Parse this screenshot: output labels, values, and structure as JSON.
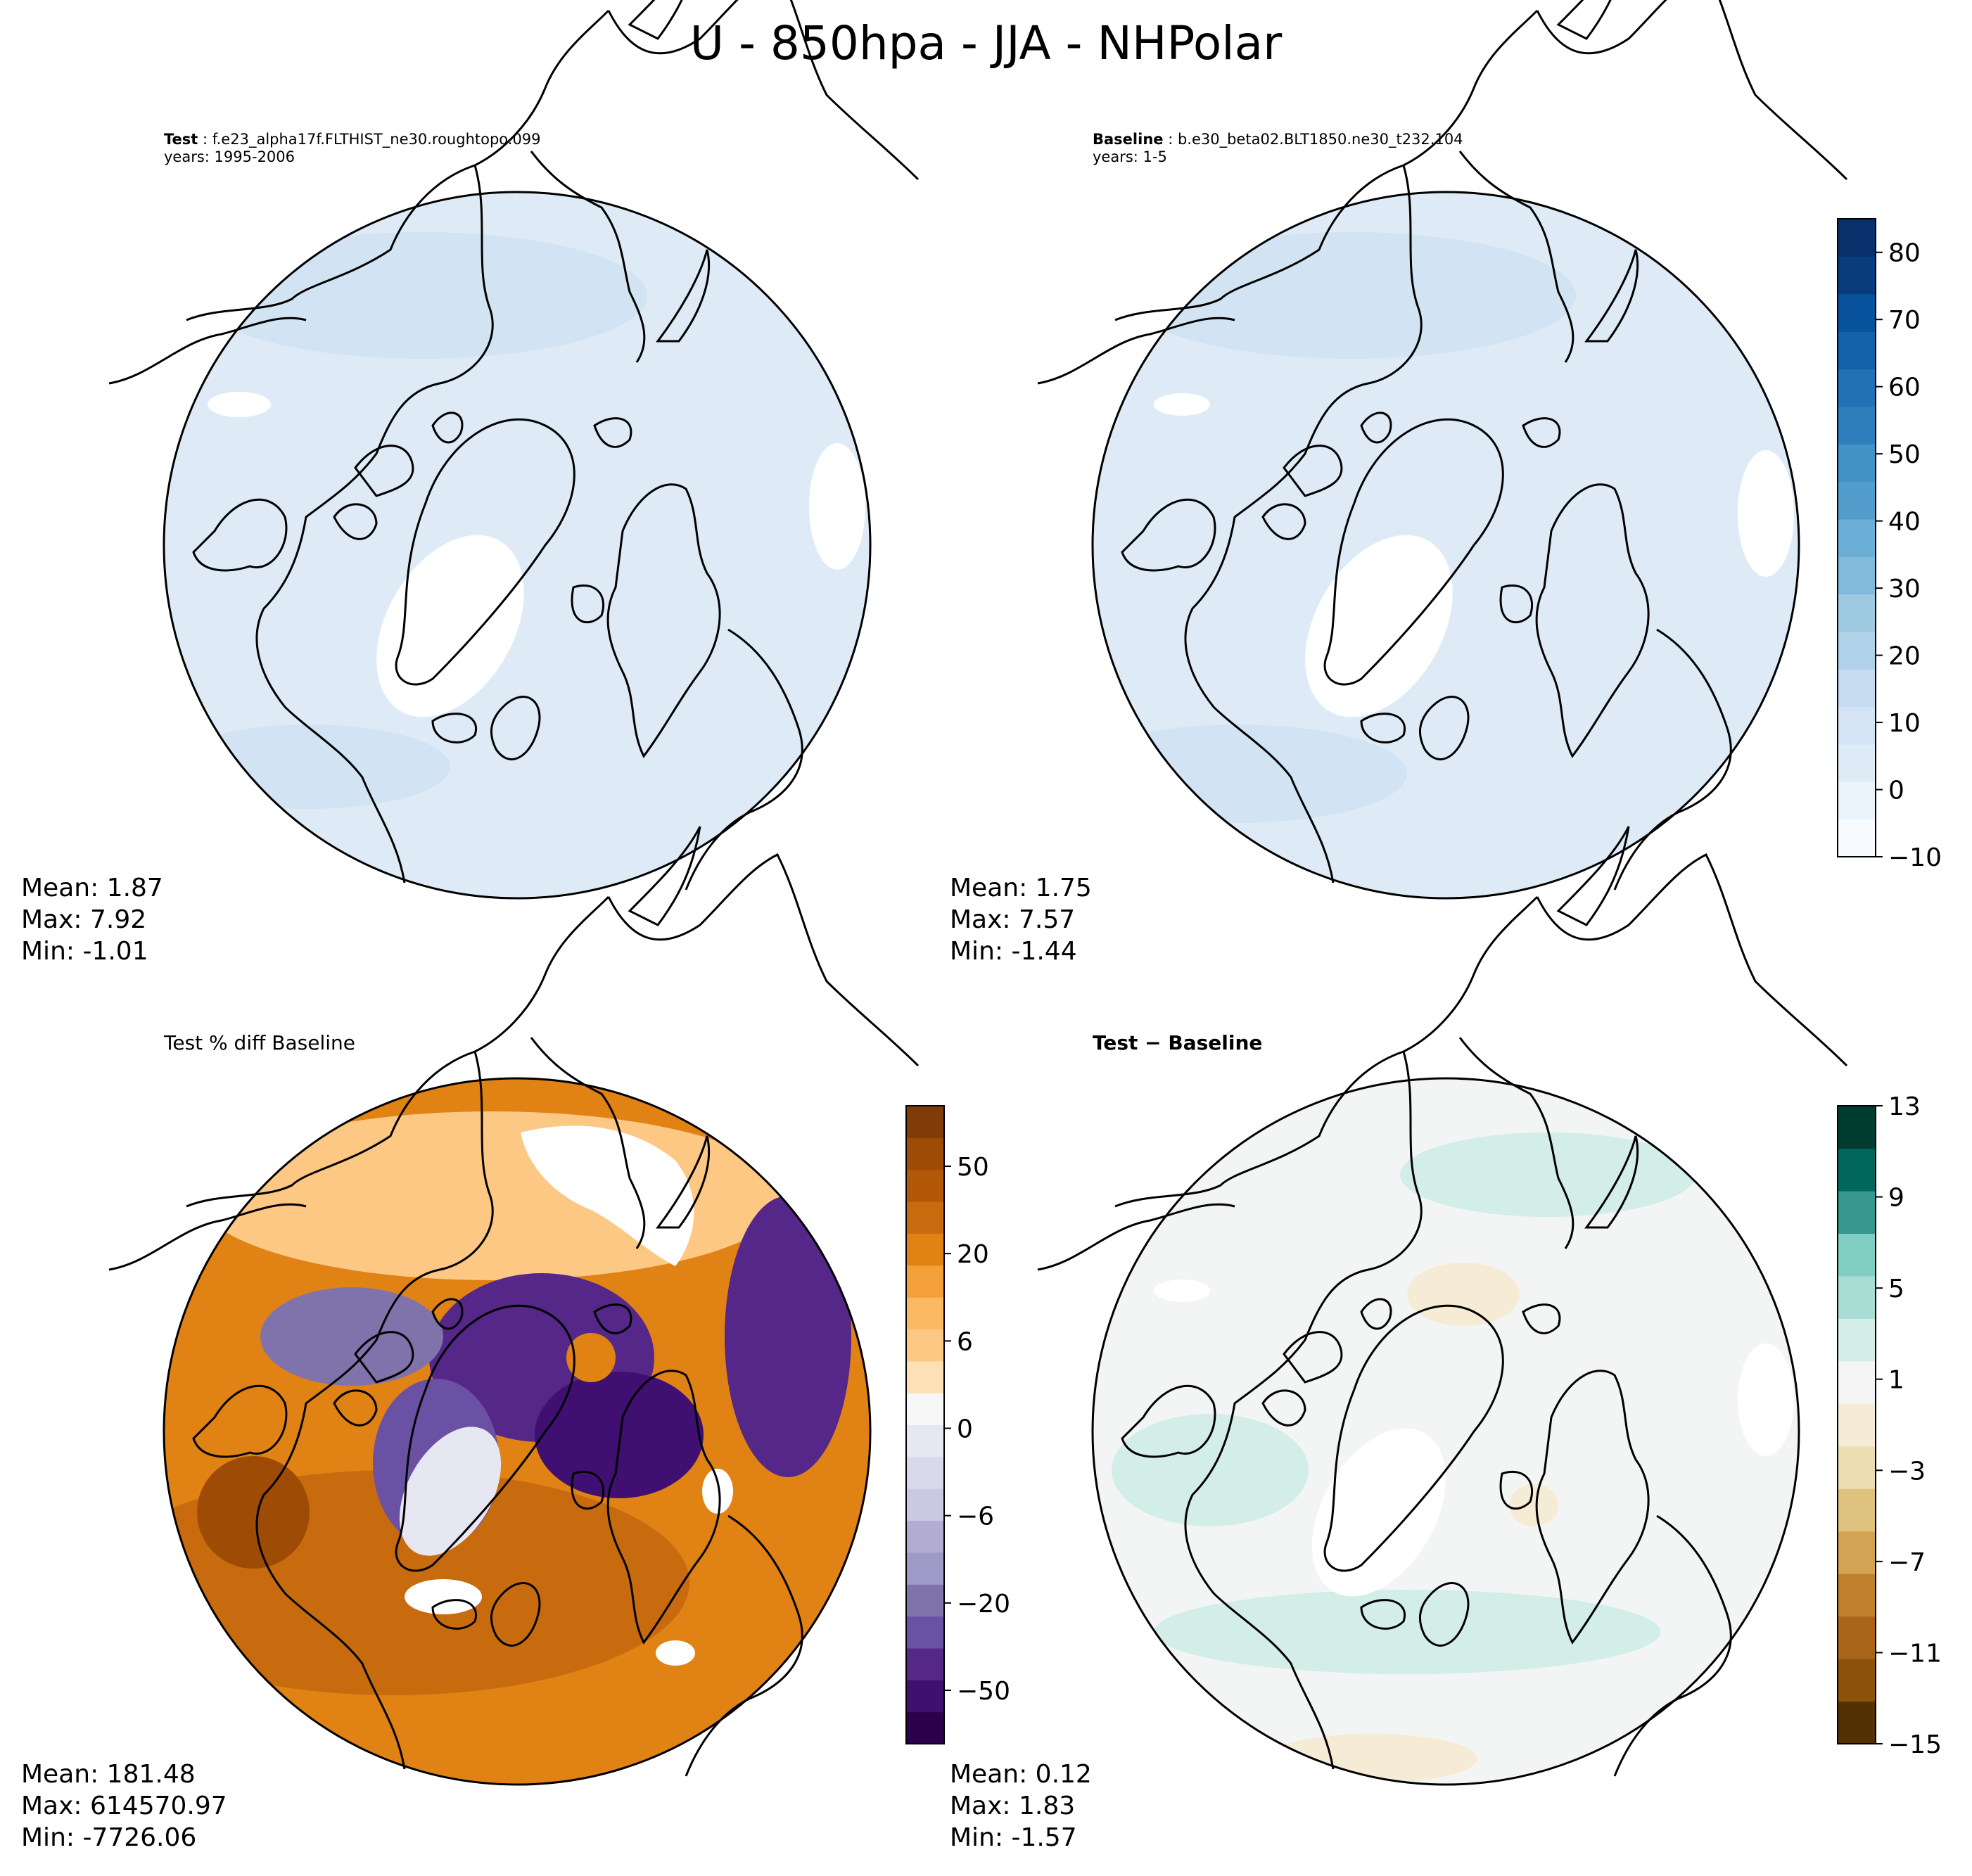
{
  "title": "U - 850hpa - JJA - NHPolar",
  "panels": {
    "test": {
      "label": "Test",
      "case": "f.e23_alpha17f.FLTHIST_ne30.roughtopo.099",
      "years": "years: 1995-2006",
      "stats": {
        "mean": "Mean:  1.87",
        "max": "Max:  7.92",
        "min": "Min: -1.01"
      }
    },
    "baseline": {
      "label": "Baseline",
      "case": "b.e30_beta02.BLT1850.ne30_t232.104",
      "years": "years: 1-5",
      "stats": {
        "mean": "Mean:  1.75",
        "max": "Max:  7.57",
        "min": "Min: -1.44"
      }
    },
    "pctdiff": {
      "title": "Test % diff Baseline",
      "stats": {
        "mean": "Mean: 181.48",
        "max": "Max: 614570.97",
        "min": "Min: -7726.06"
      }
    },
    "diff": {
      "title": "Test − Baseline",
      "stats": {
        "mean": "Mean:  0.12",
        "max": "Max:  1.83",
        "min": "Min: -1.57"
      }
    }
  },
  "colorbars": {
    "field": {
      "ticks": [
        "80",
        "70",
        "60",
        "50",
        "40",
        "30",
        "20",
        "10",
        "0",
        "−10"
      ],
      "tick_values": [
        80,
        70,
        60,
        50,
        40,
        30,
        20,
        10,
        0,
        -10
      ],
      "range": [
        -10,
        85
      ],
      "colors": [
        "#f7fbff",
        "#eaf2fb",
        "#deebf7",
        "#d4e4f4",
        "#c6dbef",
        "#b0d2e8",
        "#9ecae1",
        "#82badb",
        "#6baed6",
        "#529dcc",
        "#4292c6",
        "#2f7ebc",
        "#2171b5",
        "#1361a9",
        "#08519c",
        "#083c7d",
        "#08306b"
      ]
    },
    "pctdiff": {
      "ticks": [
        "50",
        "20",
        "6",
        "0",
        "−6",
        "−20",
        "−50"
      ],
      "colors": [
        "#2d004b",
        "#3f0f72",
        "#542788",
        "#6a51a3",
        "#8073ac",
        "#9e9ac8",
        "#b2abd2",
        "#cbc9e2",
        "#d8daeb",
        "#e6e7f0",
        "#f7f7f7",
        "#fee0b6",
        "#fdc784",
        "#fdb863",
        "#f39f3a",
        "#e08214",
        "#c86b0f",
        "#b35806",
        "#9d4b05",
        "#7f3b08"
      ]
    },
    "diff": {
      "ticks": [
        "13",
        "9",
        "5",
        "1",
        "−3",
        "−7",
        "−11",
        "−15"
      ],
      "colors": [
        "#543005",
        "#8c510a",
        "#a9661b",
        "#bf812d",
        "#d2a454",
        "#dfc27d",
        "#ecdcb1",
        "#f6ebd4",
        "#f5f5f5",
        "#d5ede9",
        "#a8ddd3",
        "#80cdc1",
        "#35978f",
        "#01665e",
        "#003c30"
      ]
    }
  },
  "map_colors": {
    "field_base": "#deebf7",
    "field_dark": "#d2e3f3",
    "diff_base": "#f3f5f4",
    "diff_green": "#d3ede8",
    "diff_tan": "#f6ebd4"
  }
}
